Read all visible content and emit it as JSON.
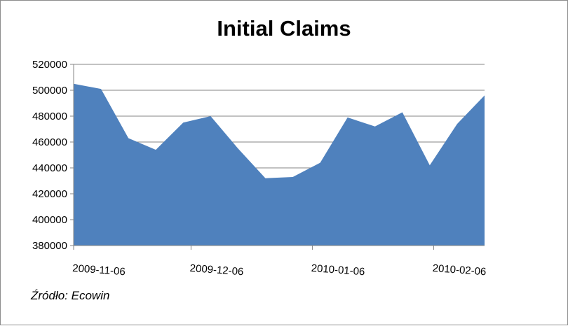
{
  "chart_data": {
    "type": "area",
    "title": "Initial Claims",
    "source": "Źródło: Ecowin",
    "xlabel": "",
    "ylabel": "",
    "ylim": [
      380000,
      520000
    ],
    "yticks": [
      380000,
      400000,
      420000,
      440000,
      460000,
      480000,
      500000,
      520000
    ],
    "ytick_labels": [
      "380000",
      "400000",
      "420000",
      "440000",
      "460000",
      "480000",
      "500000",
      "520000"
    ],
    "xtick_labels": [
      "2009-11-06",
      "2009-12-06",
      "2010-01-06",
      "2010-02-06"
    ],
    "xtick_dates": [
      "2009-11-06",
      "2009-12-06",
      "2010-01-06",
      "2010-02-06"
    ],
    "grid": true,
    "legend": "none",
    "color": "#4f81bd",
    "x": [
      "2009-11-06",
      "2009-11-13",
      "2009-11-20",
      "2009-11-27",
      "2009-12-04",
      "2009-12-11",
      "2009-12-18",
      "2009-12-25",
      "2010-01-01",
      "2010-01-08",
      "2010-01-15",
      "2010-01-22",
      "2010-01-29",
      "2010-02-05",
      "2010-02-12",
      "2010-02-19"
    ],
    "values": [
      505000,
      501000,
      463000,
      454000,
      475000,
      480000,
      455000,
      432000,
      433000,
      444000,
      479000,
      472000,
      483000,
      442000,
      474000,
      496000
    ]
  }
}
